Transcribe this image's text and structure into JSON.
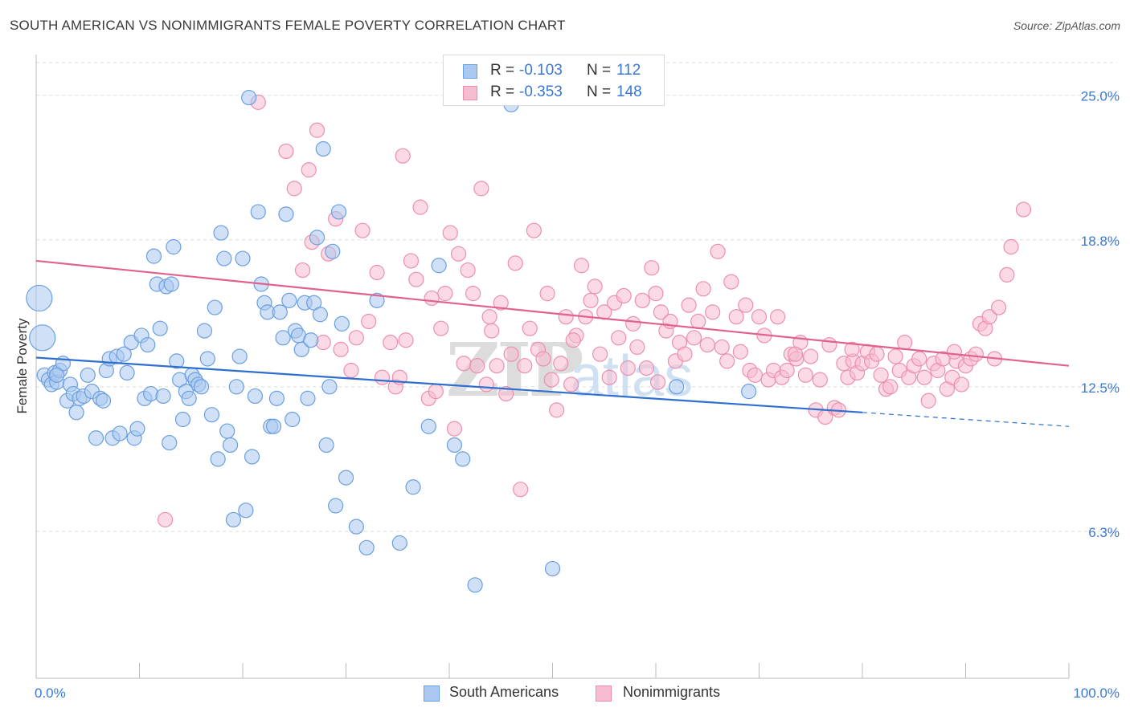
{
  "title": "SOUTH AMERICAN VS NONIMMIGRANTS FEMALE POVERTY CORRELATION CHART",
  "source": "Source: ZipAtlas.com",
  "watermark": {
    "zip": "ZIP",
    "atlas": "atlas"
  },
  "legend_top": {
    "rows": [
      {
        "r_label": "R =",
        "r_value": "-0.103",
        "n_label": "N =",
        "n_value": "112"
      },
      {
        "r_label": "R =",
        "r_value": "-0.353",
        "n_label": "N =",
        "n_value": "148"
      }
    ]
  },
  "legend_bottom": {
    "series1": "South Americans",
    "series2": "Nonimmigrants"
  },
  "colors": {
    "blue_fill": "#aac8f0",
    "blue_stroke": "#6a9fe0",
    "blue_line": "#2f6fd0",
    "pink_fill": "#f7bcd0",
    "pink_stroke": "#ec8fae",
    "pink_line": "#e0628d",
    "tick_label": "#3a78d4",
    "grid": "#dddddd"
  },
  "chart_data": {
    "type": "scatter",
    "title": "SOUTH AMERICAN VS NONIMMIGRANTS FEMALE POVERTY CORRELATION CHART",
    "xlabel": "",
    "ylabel": "Female Poverty",
    "xlim": [
      0,
      100
    ],
    "ylim": [
      0,
      26.4
    ],
    "x_tick_labels": [
      "0.0%",
      "100.0%"
    ],
    "y_ticks": [
      6.3,
      12.5,
      18.8,
      25.0
    ],
    "y_tick_labels": [
      "6.3%",
      "12.5%",
      "18.8%",
      "25.0%"
    ],
    "grid": "horizontal dashed",
    "legend_position": "top-center",
    "series": [
      {
        "name": "South Americans",
        "r": -0.103,
        "n": 112,
        "trend": {
          "x0": 0,
          "y0": 13.75,
          "x1": 80,
          "y1": 11.4,
          "dashed_to": 100,
          "dashed_y": 10.8
        },
        "points": [
          [
            0.3,
            16.3
          ],
          [
            0.6,
            14.6
          ],
          [
            0.8,
            13.0
          ],
          [
            1.2,
            12.8
          ],
          [
            1.5,
            12.6
          ],
          [
            1.8,
            13.1
          ],
          [
            2.0,
            12.7
          ],
          [
            2.3,
            13.2
          ],
          [
            2.6,
            13.5
          ],
          [
            3.0,
            11.9
          ],
          [
            3.3,
            12.6
          ],
          [
            3.6,
            12.2
          ],
          [
            3.9,
            11.4
          ],
          [
            4.2,
            12.0
          ],
          [
            4.6,
            12.1
          ],
          [
            5.0,
            13.0
          ],
          [
            5.4,
            12.3
          ],
          [
            5.8,
            10.3
          ],
          [
            6.2,
            12.0
          ],
          [
            6.5,
            11.9
          ],
          [
            6.8,
            13.2
          ],
          [
            7.1,
            13.7
          ],
          [
            7.4,
            10.3
          ],
          [
            7.8,
            13.8
          ],
          [
            8.1,
            10.5
          ],
          [
            8.5,
            13.9
          ],
          [
            8.8,
            13.1
          ],
          [
            9.2,
            14.4
          ],
          [
            9.5,
            10.3
          ],
          [
            9.8,
            10.7
          ],
          [
            10.2,
            14.7
          ],
          [
            10.5,
            12.0
          ],
          [
            10.8,
            14.3
          ],
          [
            11.1,
            12.2
          ],
          [
            11.4,
            18.1
          ],
          [
            11.7,
            16.9
          ],
          [
            12.0,
            15.0
          ],
          [
            12.3,
            12.1
          ],
          [
            12.6,
            16.8
          ],
          [
            12.9,
            10.1
          ],
          [
            13.1,
            16.9
          ],
          [
            13.3,
            18.5
          ],
          [
            13.6,
            13.6
          ],
          [
            13.9,
            12.8
          ],
          [
            14.2,
            11.1
          ],
          [
            14.5,
            12.3
          ],
          [
            14.8,
            12.0
          ],
          [
            15.1,
            13.0
          ],
          [
            15.4,
            12.8
          ],
          [
            15.7,
            12.6
          ],
          [
            16.0,
            12.5
          ],
          [
            16.3,
            14.9
          ],
          [
            16.6,
            13.7
          ],
          [
            17.0,
            11.3
          ],
          [
            17.3,
            15.9
          ],
          [
            17.6,
            9.4
          ],
          [
            17.9,
            19.1
          ],
          [
            18.2,
            18.0
          ],
          [
            18.5,
            10.6
          ],
          [
            18.8,
            10.0
          ],
          [
            19.1,
            6.8
          ],
          [
            19.4,
            12.5
          ],
          [
            19.7,
            13.8
          ],
          [
            20.0,
            18.0
          ],
          [
            20.3,
            7.2
          ],
          [
            20.6,
            24.9
          ],
          [
            20.9,
            9.5
          ],
          [
            21.2,
            12.1
          ],
          [
            21.5,
            20.0
          ],
          [
            21.8,
            16.9
          ],
          [
            22.1,
            16.1
          ],
          [
            22.4,
            15.7
          ],
          [
            22.7,
            10.8
          ],
          [
            23.0,
            10.8
          ],
          [
            23.3,
            12.0
          ],
          [
            23.6,
            15.7
          ],
          [
            23.9,
            14.6
          ],
          [
            24.2,
            19.9
          ],
          [
            24.5,
            16.2
          ],
          [
            24.8,
            11.1
          ],
          [
            25.1,
            14.9
          ],
          [
            25.4,
            14.7
          ],
          [
            25.7,
            14.1
          ],
          [
            26.0,
            16.1
          ],
          [
            26.3,
            12.0
          ],
          [
            26.6,
            14.5
          ],
          [
            26.9,
            16.1
          ],
          [
            27.2,
            18.9
          ],
          [
            27.5,
            15.6
          ],
          [
            27.8,
            22.7
          ],
          [
            28.1,
            10.0
          ],
          [
            28.4,
            12.5
          ],
          [
            28.7,
            18.3
          ],
          [
            29.0,
            7.4
          ],
          [
            29.3,
            20.0
          ],
          [
            29.6,
            15.2
          ],
          [
            30.0,
            8.6
          ],
          [
            31.0,
            6.5
          ],
          [
            32.0,
            5.6
          ],
          [
            33.0,
            16.2
          ],
          [
            35.2,
            5.8
          ],
          [
            36.5,
            8.2
          ],
          [
            38.0,
            10.8
          ],
          [
            39.0,
            17.7
          ],
          [
            40.5,
            10.0
          ],
          [
            41.3,
            9.4
          ],
          [
            42.5,
            4.0
          ],
          [
            46.0,
            24.6
          ],
          [
            50.0,
            4.7
          ],
          [
            62.0,
            12.5
          ],
          [
            69.0,
            12.3
          ],
          [
            2.0,
            13.0
          ]
        ]
      },
      {
        "name": "Nonimmigrants",
        "r": -0.353,
        "n": 148,
        "trend": {
          "x0": 0,
          "y0": 17.9,
          "x1": 100,
          "y1": 13.4
        },
        "points": [
          [
            12.5,
            6.8
          ],
          [
            21.5,
            24.7
          ],
          [
            24.2,
            22.6
          ],
          [
            25.0,
            21.0
          ],
          [
            25.8,
            17.5
          ],
          [
            26.4,
            21.8
          ],
          [
            26.7,
            18.7
          ],
          [
            27.2,
            23.5
          ],
          [
            27.8,
            14.4
          ],
          [
            28.3,
            18.2
          ],
          [
            29.0,
            19.7
          ],
          [
            29.5,
            14.1
          ],
          [
            30.5,
            13.2
          ],
          [
            31.0,
            14.6
          ],
          [
            31.6,
            19.2
          ],
          [
            32.2,
            15.3
          ],
          [
            33.0,
            17.4
          ],
          [
            33.5,
            12.9
          ],
          [
            34.3,
            14.4
          ],
          [
            34.8,
            12.5
          ],
          [
            35.2,
            12.9
          ],
          [
            35.8,
            14.5
          ],
          [
            36.3,
            17.9
          ],
          [
            37.2,
            20.2
          ],
          [
            38.0,
            12.0
          ],
          [
            38.3,
            16.3
          ],
          [
            38.7,
            12.3
          ],
          [
            39.2,
            15.0
          ],
          [
            39.6,
            16.5
          ],
          [
            40.1,
            19.1
          ],
          [
            40.5,
            10.7
          ],
          [
            40.9,
            18.2
          ],
          [
            41.4,
            13.5
          ],
          [
            41.8,
            17.5
          ],
          [
            42.3,
            16.5
          ],
          [
            42.7,
            13.4
          ],
          [
            43.1,
            21.0
          ],
          [
            43.6,
            12.6
          ],
          [
            44.1,
            14.9
          ],
          [
            44.6,
            13.4
          ],
          [
            45.0,
            16.1
          ],
          [
            45.5,
            12.2
          ],
          [
            46.0,
            13.9
          ],
          [
            46.4,
            17.8
          ],
          [
            46.9,
            8.1
          ],
          [
            47.3,
            13.4
          ],
          [
            47.8,
            15.0
          ],
          [
            48.2,
            19.2
          ],
          [
            48.6,
            14.1
          ],
          [
            49.1,
            13.7
          ],
          [
            49.5,
            16.5
          ],
          [
            49.9,
            12.8
          ],
          [
            50.4,
            11.5
          ],
          [
            50.8,
            13.5
          ],
          [
            51.3,
            15.5
          ],
          [
            51.8,
            12.6
          ],
          [
            52.3,
            14.7
          ],
          [
            52.8,
            17.7
          ],
          [
            53.2,
            15.5
          ],
          [
            53.7,
            16.2
          ],
          [
            54.1,
            16.8
          ],
          [
            54.6,
            13.9
          ],
          [
            55.0,
            15.7
          ],
          [
            55.5,
            12.9
          ],
          [
            56.0,
            16.1
          ],
          [
            56.4,
            14.6
          ],
          [
            56.9,
            16.4
          ],
          [
            57.3,
            13.3
          ],
          [
            57.8,
            15.2
          ],
          [
            58.2,
            14.2
          ],
          [
            58.7,
            16.2
          ],
          [
            59.1,
            13.3
          ],
          [
            59.6,
            17.6
          ],
          [
            60.0,
            16.5
          ],
          [
            60.5,
            15.7
          ],
          [
            61.0,
            14.9
          ],
          [
            61.4,
            15.3
          ],
          [
            61.9,
            13.6
          ],
          [
            62.3,
            14.4
          ],
          [
            62.8,
            13.9
          ],
          [
            63.2,
            16.0
          ],
          [
            63.7,
            14.6
          ],
          [
            64.1,
            15.3
          ],
          [
            64.6,
            16.7
          ],
          [
            65.0,
            14.3
          ],
          [
            65.5,
            15.7
          ],
          [
            66.0,
            18.3
          ],
          [
            66.4,
            14.2
          ],
          [
            66.9,
            13.6
          ],
          [
            67.3,
            17.0
          ],
          [
            67.8,
            15.5
          ],
          [
            68.2,
            14.0
          ],
          [
            68.7,
            16.0
          ],
          [
            69.1,
            13.2
          ],
          [
            69.6,
            13.0
          ],
          [
            70.0,
            15.5
          ],
          [
            70.5,
            14.7
          ],
          [
            70.9,
            12.8
          ],
          [
            71.4,
            13.2
          ],
          [
            71.8,
            15.5
          ],
          [
            72.2,
            12.9
          ],
          [
            72.7,
            13.2
          ],
          [
            73.1,
            13.9
          ],
          [
            73.6,
            13.7
          ],
          [
            74.0,
            14.4
          ],
          [
            74.5,
            13.0
          ],
          [
            75.0,
            13.8
          ],
          [
            75.5,
            11.5
          ],
          [
            75.9,
            12.8
          ],
          [
            76.4,
            11.2
          ],
          [
            76.8,
            14.3
          ],
          [
            77.3,
            11.6
          ],
          [
            77.7,
            11.5
          ],
          [
            78.2,
            13.5
          ],
          [
            78.6,
            12.9
          ],
          [
            79.1,
            13.6
          ],
          [
            79.5,
            13.1
          ],
          [
            80.0,
            13.5
          ],
          [
            80.5,
            14.0
          ],
          [
            80.9,
            13.6
          ],
          [
            81.4,
            13.9
          ],
          [
            81.8,
            13.0
          ],
          [
            82.3,
            12.4
          ],
          [
            82.7,
            12.5
          ],
          [
            83.2,
            13.8
          ],
          [
            83.6,
            13.2
          ],
          [
            84.1,
            14.4
          ],
          [
            84.5,
            12.9
          ],
          [
            85.0,
            13.4
          ],
          [
            85.5,
            13.7
          ],
          [
            86.0,
            12.9
          ],
          [
            86.4,
            11.9
          ],
          [
            86.9,
            13.5
          ],
          [
            87.3,
            13.2
          ],
          [
            87.8,
            13.7
          ],
          [
            88.2,
            12.4
          ],
          [
            88.7,
            12.9
          ],
          [
            89.1,
            13.6
          ],
          [
            89.6,
            12.6
          ],
          [
            90.0,
            13.4
          ],
          [
            90.5,
            13.7
          ],
          [
            91.0,
            13.9
          ],
          [
            91.4,
            15.2
          ],
          [
            91.9,
            15.0
          ],
          [
            92.3,
            15.5
          ],
          [
            92.8,
            13.7
          ],
          [
            93.2,
            15.9
          ],
          [
            94.0,
            17.3
          ],
          [
            94.4,
            18.5
          ],
          [
            95.6,
            20.1
          ],
          [
            73.5,
            13.9
          ],
          [
            79.0,
            14.1
          ],
          [
            60.2,
            12.7
          ],
          [
            52.0,
            14.5
          ],
          [
            43.9,
            15.5
          ],
          [
            88.9,
            14.0
          ],
          [
            35.5,
            22.4
          ],
          [
            36.8,
            17.1
          ]
        ]
      }
    ]
  }
}
